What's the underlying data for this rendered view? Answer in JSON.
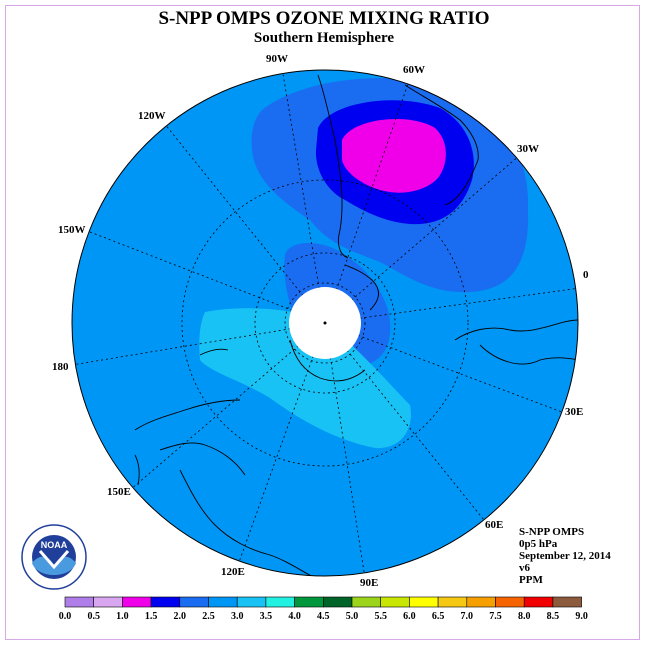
{
  "title": "S-NPP OMPS OZONE MIXING RATIO",
  "subtitle": "Southern Hemisphere",
  "map": {
    "projection": "south polar stereographic",
    "longitude_labels": [
      "90W",
      "60W",
      "30W",
      "0",
      "30E",
      "60E",
      "90E",
      "120E",
      "150E",
      "180",
      "150W",
      "120W"
    ],
    "missing_data_color": "#ffffff"
  },
  "info": {
    "instrument": "S-NPP OMPS",
    "pressure": "0p5 hPa",
    "date": "September 12, 2014",
    "version": "v6",
    "units": "PPM"
  },
  "colorbar": {
    "tick_labels": [
      "0.0",
      "0.5",
      "1.0",
      "1.5",
      "2.0",
      "2.5",
      "3.0",
      "3.5",
      "4.0",
      "4.5",
      "5.0",
      "5.5",
      "6.0",
      "6.5",
      "7.0",
      "7.5",
      "8.0",
      "8.5",
      "9.0"
    ],
    "colors": [
      "#b07ee8",
      "#d9a6f0",
      "#f000e8",
      "#0000f0",
      "#1a6cf0",
      "#0096f5",
      "#18c2f5",
      "#22f0e0",
      "#00963c",
      "#006428",
      "#9cd41c",
      "#c8e600",
      "#ffff00",
      "#f5c814",
      "#f5a000",
      "#f56400",
      "#f00000",
      "#8c5a3c"
    ]
  },
  "logo": {
    "text": "NOAA",
    "ring_text": "NATIONAL OCEANIC AND ATMOSPHERIC ADMINISTRATION · U.S. DEPARTMENT OF COMMERCE"
  },
  "field_colors": {
    "background": "#0096f5",
    "level_2p5": "#1a6cf0",
    "level_2p0": "#0000f0",
    "level_1p5": "#f000e8",
    "level_3p0": "#18c2f5"
  }
}
